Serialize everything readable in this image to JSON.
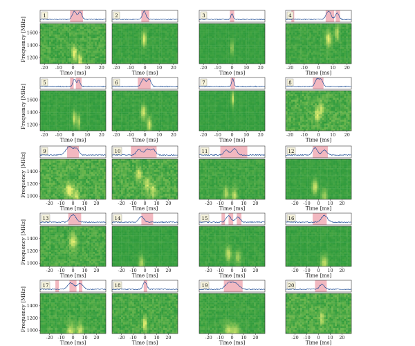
{
  "chart_data": {
    "type": "heatmap",
    "layout": {
      "rows": 5,
      "cols": 4
    },
    "xlabel": "Time [ms]",
    "ylabel": "Frequency [MHz]",
    "colors": {
      "dynamic_spectrum_base": "#2e9a3c",
      "dynamic_spectrum_bright": "#e8f070",
      "profile_line": "#1f4e96",
      "highlight_region": "#f2b8c0",
      "frame": "#333333"
    },
    "rows": [
      {
        "xlim": [
          -23,
          23
        ],
        "xticks": [
          "-20",
          "-10",
          "0",
          "10",
          "20"
        ],
        "ylim": [
          1100,
          1750
        ],
        "yticks": [
          "1200",
          "1400",
          "1600"
        ]
      },
      {
        "xlim": [
          -23,
          23
        ],
        "xticks": [
          "-20",
          "-10",
          "0",
          "10",
          "20"
        ],
        "ylim": [
          1100,
          1750
        ],
        "yticks": [
          "1200",
          "1400",
          "1600"
        ]
      },
      {
        "xlim": [
          -28,
          28
        ],
        "xticks": [
          "-20",
          "-10",
          "0",
          "10",
          "20"
        ],
        "ylim": [
          950,
          1600
        ],
        "yticks": [
          "1000",
          "1200",
          "1400"
        ]
      },
      {
        "xlim": [
          -28,
          28
        ],
        "xticks": [
          "-20",
          "-10",
          "0",
          "10",
          "20"
        ],
        "ylim": [
          950,
          1600
        ],
        "yticks": [
          "1000",
          "1200",
          "1400"
        ]
      },
      {
        "xlim": [
          -28,
          28
        ],
        "xticks": [
          "-20",
          "-10",
          "0",
          "10",
          "20"
        ],
        "ylim": [
          950,
          1600
        ],
        "yticks": [
          "1000",
          "1200",
          "1400"
        ]
      }
    ],
    "panels": [
      {
        "label": "1",
        "pulses": [
          {
            "t": 1,
            "f": 1270,
            "w": 1.4,
            "amp": 1.0
          },
          {
            "t": 5,
            "f": 1150,
            "w": 1.2,
            "amp": 0.9
          }
        ],
        "highlights": [
          [
            -2,
            7
          ]
        ],
        "background": 0.3
      },
      {
        "label": "2",
        "pulses": [
          {
            "t": -0.5,
            "f": 1500,
            "w": 1.2,
            "amp": 1.0
          }
        ],
        "highlights": [
          [
            -2.5,
            3
          ]
        ],
        "background": 0.15
      },
      {
        "label": "3",
        "pulses": [
          {
            "t": 0,
            "f": 1350,
            "w": 0.8,
            "amp": 0.7
          }
        ],
        "highlights": [
          [
            -1.5,
            1.5
          ]
        ],
        "background": 0.1
      },
      {
        "label": "4",
        "pulses": [
          {
            "t": 7,
            "f": 1500,
            "w": 1.6,
            "amp": 1.0
          },
          {
            "t": 13,
            "f": 1600,
            "w": 1.2,
            "amp": 0.8
          }
        ],
        "highlights": [
          [
            -19,
            -17
          ],
          [
            5,
            11
          ],
          [
            12,
            15
          ]
        ],
        "background": 0.2
      },
      {
        "label": "5",
        "pulses": [
          {
            "t": 1,
            "f": 1300,
            "w": 1.0,
            "amp": 0.9
          },
          {
            "t": 4,
            "f": 1250,
            "w": 0.9,
            "amp": 0.8
          }
        ],
        "highlights": [
          [
            -2,
            0.5
          ],
          [
            2,
            6
          ]
        ],
        "background": 0.12
      },
      {
        "label": "6",
        "pulses": [
          {
            "t": -1,
            "f": 1400,
            "w": 1.5,
            "amp": 0.9
          },
          {
            "t": 3,
            "f": 1200,
            "w": 1.3,
            "amp": 0.9
          }
        ],
        "highlights": [
          [
            -5,
            4
          ]
        ],
        "background": 0.15
      },
      {
        "label": "7",
        "pulses": [
          {
            "t": 0.5,
            "f": 1620,
            "w": 0.8,
            "amp": 0.9
          }
        ],
        "highlights": [
          [
            -1,
            2
          ]
        ],
        "background": 0.1
      },
      {
        "label": "8",
        "pulses": [
          {
            "t": -1,
            "f": 1350,
            "w": 1.4,
            "amp": 0.9
          },
          {
            "t": 2,
            "f": 1450,
            "w": 1.2,
            "amp": 0.8
          }
        ],
        "highlights": [
          [
            -4,
            3.5
          ]
        ],
        "background": 0.35
      },
      {
        "label": "9",
        "pulses": [
          {
            "t": -3,
            "f": 1100,
            "w": 3.0,
            "amp": 1.0
          },
          {
            "t": 3,
            "f": 1000,
            "w": 2.0,
            "amp": 0.7
          }
        ],
        "highlights": [
          [
            -5,
            5
          ]
        ],
        "background": 0.35
      },
      {
        "label": "10",
        "pulses": [
          {
            "t": -5,
            "f": 1350,
            "w": 2.0,
            "amp": 0.7
          },
          {
            "t": 2,
            "f": 1200,
            "w": 2.0,
            "amp": 0.7
          },
          {
            "t": 7,
            "f": 1100,
            "w": 2.0,
            "amp": 0.7
          }
        ],
        "highlights": [
          [
            -12,
            10
          ]
        ],
        "background": 0.35
      },
      {
        "label": "11",
        "pulses": [
          {
            "t": -5,
            "f": 1050,
            "w": 2.0,
            "amp": 0.6
          },
          {
            "t": 2,
            "f": 1000,
            "w": 2.0,
            "amp": 0.8
          }
        ],
        "highlights": [
          [
            -10,
            13
          ]
        ],
        "background": 0.2
      },
      {
        "label": "12",
        "pulses": [
          {
            "t": -3,
            "f": 1150,
            "w": 2.0,
            "amp": 0.9
          },
          {
            "t": 5,
            "f": 1000,
            "w": 2.0,
            "amp": 0.6
          }
        ],
        "highlights": [
          [
            -5,
            8
          ]
        ],
        "background": 0.12
      },
      {
        "label": "13",
        "pulses": [
          {
            "t": 0,
            "f": 1350,
            "w": 2.5,
            "amp": 0.9
          }
        ],
        "highlights": [
          [
            -4,
            7
          ]
        ],
        "background": 0.3
      },
      {
        "label": "14",
        "pulses": [
          {
            "t": -3,
            "f": 1000,
            "w": 2.0,
            "amp": 0.7
          }
        ],
        "highlights": [
          [
            -3,
            7
          ]
        ],
        "background": 0.1
      },
      {
        "label": "15",
        "pulses": [
          {
            "t": -3,
            "f": 1150,
            "w": 2.0,
            "amp": 0.8
          },
          {
            "t": 5,
            "f": 1100,
            "w": 2.0,
            "amp": 0.6
          }
        ],
        "highlights": [
          [
            -9,
            -6
          ],
          [
            -3,
            1
          ],
          [
            4,
            8
          ]
        ],
        "background": 0.15
      },
      {
        "label": "16",
        "pulses": [
          {
            "t": 5,
            "f": 1000,
            "w": 2.5,
            "amp": 0.8
          }
        ],
        "highlights": [
          [
            -5,
            7
          ]
        ],
        "background": 0.12
      },
      {
        "label": "17",
        "pulses": [
          {
            "t": -2,
            "f": 980,
            "w": 2.5,
            "amp": 0.8
          },
          {
            "t": 6,
            "f": 1000,
            "w": 2.5,
            "amp": 0.7
          }
        ],
        "highlights": [
          [
            -15,
            -12
          ],
          [
            -3,
            3
          ],
          [
            5,
            8
          ]
        ],
        "background": 0.25
      },
      {
        "label": "18",
        "pulses": [
          {
            "t": 0,
            "f": 1100,
            "w": 1.5,
            "amp": 0.9
          }
        ],
        "highlights": [
          [
            -1,
            2
          ]
        ],
        "background": 0.3
      },
      {
        "label": "19",
        "pulses": [
          {
            "t": -3,
            "f": 1000,
            "w": 3.0,
            "amp": 0.7
          },
          {
            "t": 3,
            "f": 980,
            "w": 3.0,
            "amp": 0.7
          }
        ],
        "highlights": [
          [
            -7,
            9
          ]
        ],
        "background": 0.2
      },
      {
        "label": "20",
        "pulses": [
          {
            "t": 3,
            "f": 1200,
            "w": 2.0,
            "amp": 0.6
          }
        ],
        "highlights": [
          [
            -3,
            7
          ]
        ],
        "background": 0.35
      }
    ]
  }
}
